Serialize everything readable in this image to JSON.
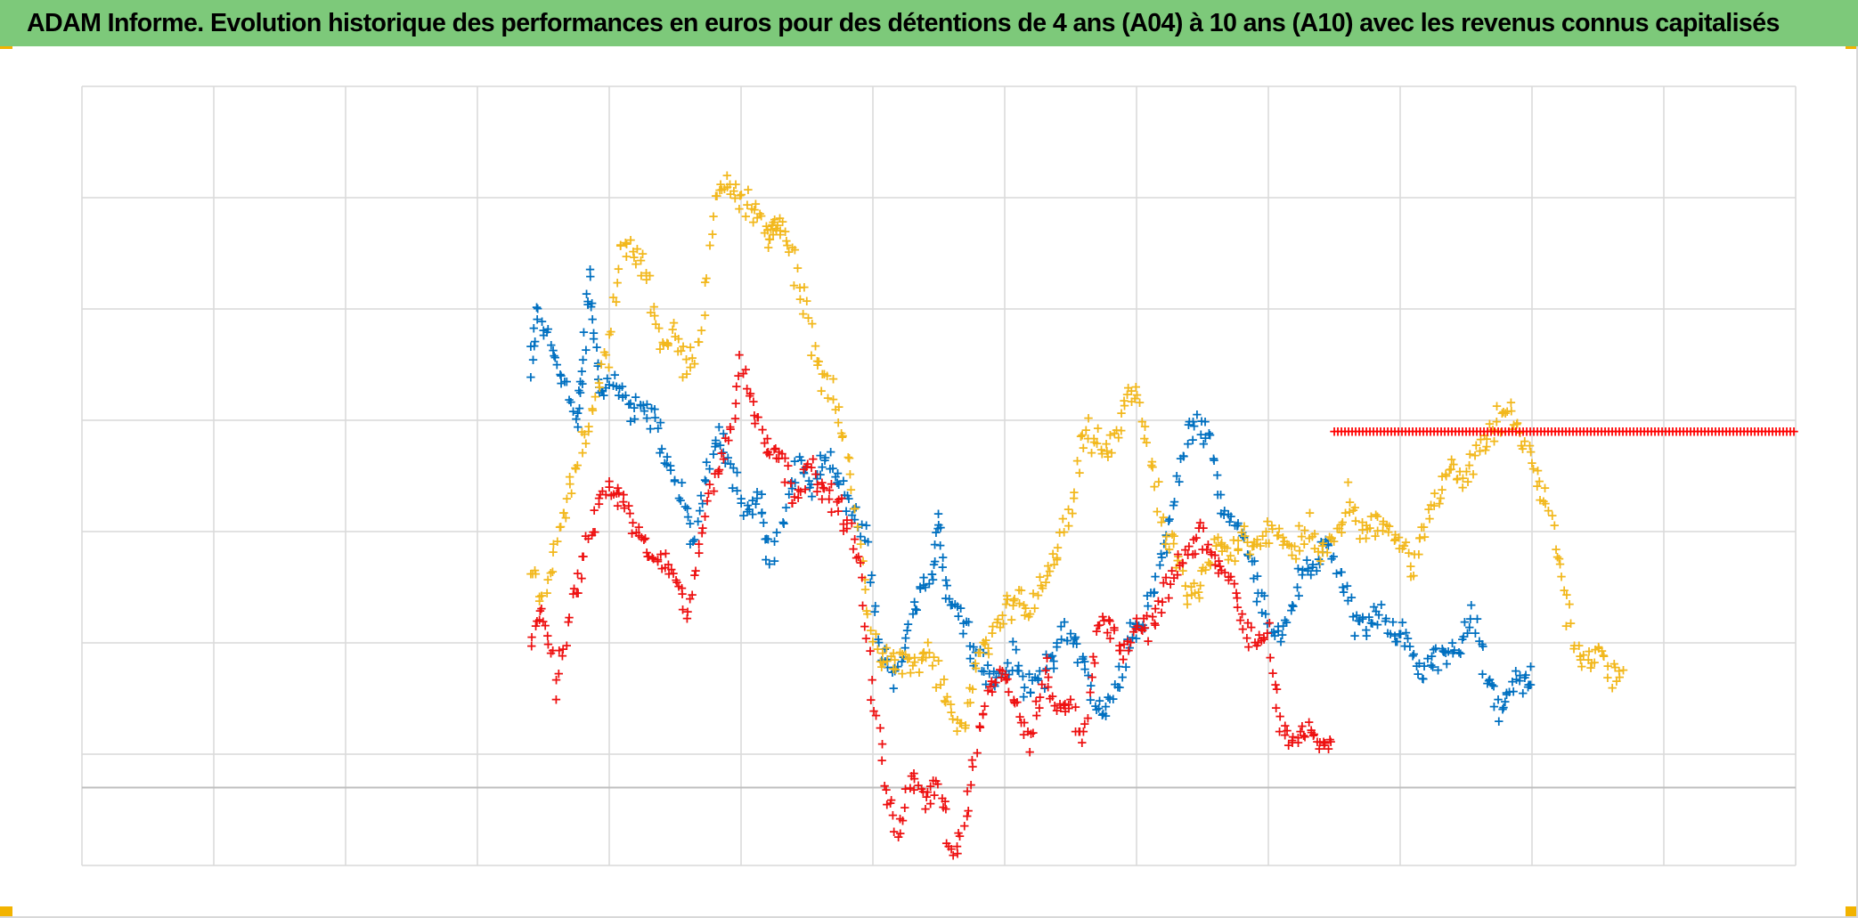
{
  "title": "ADAM Informe. Evolution historique des performances en euros pour des détentions de 4 ans (A04) à 10 ans (A10) avec les revenus connus capitalisés",
  "colors": {
    "title_bar": "#7dc97a",
    "corner_accent": "#f2b300",
    "gridline": "#d9d9d9",
    "zero_line": "#bfbfbf"
  },
  "chart_data": {
    "type": "scatter",
    "title": "ADAM Informe. Evolution historique des performances en euros pour des détentions de 4 ans (A04) à 10 ans (A10) avec les revenus connus capitalisés",
    "xlabel": "",
    "ylabel": "",
    "grid": true,
    "legend": "none",
    "marker": "+",
    "x_unit": "relative time (start of plot = 0, end of plot = 13)",
    "xlim": [
      0,
      13
    ],
    "ylim": [
      -7,
      63
    ],
    "x_gridlines": [
      0,
      1,
      2,
      3,
      4,
      5,
      6,
      7,
      8,
      9,
      10,
      11,
      12,
      13
    ],
    "y_gridlines": [
      -7,
      3,
      13,
      23,
      33,
      43,
      53,
      63
    ],
    "zero_line": 0,
    "series": [
      {
        "color": "#0070c0",
        "density": 7,
        "jitter": 1.6,
        "points": [
          [
            3.4,
            37
          ],
          [
            3.45,
            43
          ],
          [
            3.55,
            40
          ],
          [
            3.65,
            37
          ],
          [
            3.75,
            33
          ],
          [
            3.8,
            37
          ],
          [
            3.85,
            46
          ],
          [
            3.9,
            39
          ],
          [
            3.95,
            35
          ],
          [
            4.05,
            37
          ],
          [
            4.15,
            34
          ],
          [
            4.25,
            34
          ],
          [
            4.35,
            33
          ],
          [
            4.45,
            29
          ],
          [
            4.55,
            26
          ],
          [
            4.65,
            22
          ],
          [
            4.75,
            29
          ],
          [
            4.85,
            32
          ],
          [
            4.95,
            28
          ],
          [
            5.05,
            25
          ],
          [
            5.15,
            26
          ],
          [
            5.2,
            20
          ],
          [
            5.35,
            25
          ],
          [
            5.45,
            30
          ],
          [
            5.55,
            27
          ],
          [
            5.65,
            30
          ],
          [
            5.75,
            27
          ],
          [
            5.85,
            25
          ],
          [
            5.95,
            22
          ],
          [
            6.05,
            12
          ],
          [
            6.15,
            10
          ],
          [
            6.25,
            13
          ],
          [
            6.35,
            18
          ],
          [
            6.45,
            18
          ],
          [
            6.5,
            25
          ],
          [
            6.55,
            18
          ],
          [
            6.65,
            16
          ],
          [
            6.75,
            13
          ],
          [
            6.85,
            11
          ],
          [
            6.95,
            9
          ],
          [
            7.05,
            12
          ],
          [
            7.15,
            9
          ],
          [
            7.25,
            10
          ],
          [
            7.35,
            11
          ],
          [
            7.45,
            14
          ],
          [
            7.55,
            13
          ],
          [
            7.65,
            9
          ],
          [
            7.75,
            6
          ],
          [
            7.85,
            9
          ],
          [
            7.95,
            14
          ],
          [
            8.05,
            15
          ],
          [
            8.15,
            19
          ],
          [
            8.25,
            23
          ],
          [
            8.35,
            30
          ],
          [
            8.45,
            33
          ],
          [
            8.55,
            32
          ],
          [
            8.65,
            25
          ],
          [
            8.75,
            24
          ],
          [
            8.85,
            21
          ],
          [
            8.95,
            17
          ],
          [
            9.05,
            14
          ],
          [
            9.15,
            15
          ],
          [
            9.25,
            19
          ],
          [
            9.35,
            20
          ],
          [
            9.45,
            22
          ],
          [
            9.55,
            19
          ],
          [
            9.65,
            15
          ],
          [
            9.75,
            14
          ],
          [
            9.85,
            16
          ],
          [
            9.95,
            13
          ],
          [
            10.05,
            14
          ],
          [
            10.15,
            10
          ],
          [
            10.25,
            12
          ],
          [
            10.35,
            12
          ],
          [
            10.45,
            13
          ],
          [
            10.55,
            16
          ],
          [
            10.65,
            10
          ],
          [
            10.75,
            7
          ],
          [
            10.85,
            9
          ],
          [
            10.95,
            10
          ],
          [
            11.0,
            10
          ]
        ]
      },
      {
        "color": "#f2b81d",
        "density": 7,
        "jitter": 1.7,
        "points": [
          [
            3.4,
            19
          ],
          [
            3.5,
            17
          ],
          [
            3.6,
            23
          ],
          [
            3.7,
            26
          ],
          [
            3.8,
            31
          ],
          [
            3.9,
            35
          ],
          [
            4.0,
            40
          ],
          [
            4.1,
            49
          ],
          [
            4.2,
            48
          ],
          [
            4.3,
            45
          ],
          [
            4.4,
            40
          ],
          [
            4.5,
            41
          ],
          [
            4.6,
            37
          ],
          [
            4.7,
            41
          ],
          [
            4.8,
            53
          ],
          [
            4.9,
            55
          ],
          [
            5.0,
            53
          ],
          [
            5.1,
            52
          ],
          [
            5.2,
            49
          ],
          [
            5.25,
            51
          ],
          [
            5.3,
            50
          ],
          [
            5.4,
            47
          ],
          [
            5.5,
            43
          ],
          [
            5.6,
            37
          ],
          [
            5.7,
            35
          ],
          [
            5.8,
            30
          ],
          [
            5.9,
            22
          ],
          [
            6.0,
            13
          ],
          [
            6.1,
            12
          ],
          [
            6.2,
            11
          ],
          [
            6.3,
            11
          ],
          [
            6.4,
            12
          ],
          [
            6.5,
            10
          ],
          [
            6.6,
            6
          ],
          [
            6.7,
            6
          ],
          [
            6.8,
            12
          ],
          [
            6.9,
            13
          ],
          [
            7.0,
            16
          ],
          [
            7.1,
            17
          ],
          [
            7.2,
            16
          ],
          [
            7.3,
            19
          ],
          [
            7.4,
            21
          ],
          [
            7.5,
            25
          ],
          [
            7.6,
            32
          ],
          [
            7.7,
            31
          ],
          [
            7.8,
            30
          ],
          [
            7.9,
            34
          ],
          [
            8.0,
            36
          ],
          [
            8.1,
            30
          ],
          [
            8.2,
            23
          ],
          [
            8.3,
            21
          ],
          [
            8.4,
            17
          ],
          [
            8.5,
            18
          ],
          [
            8.6,
            22
          ],
          [
            8.7,
            21
          ],
          [
            8.8,
            23
          ],
          [
            8.9,
            22
          ],
          [
            9.0,
            23
          ],
          [
            9.1,
            22
          ],
          [
            9.2,
            21
          ],
          [
            9.3,
            24
          ],
          [
            9.4,
            21
          ],
          [
            9.5,
            22
          ],
          [
            9.6,
            26
          ],
          [
            9.7,
            23
          ],
          [
            9.8,
            24
          ],
          [
            9.9,
            24
          ],
          [
            10.0,
            22
          ],
          [
            10.1,
            20
          ],
          [
            10.2,
            23
          ],
          [
            10.3,
            27
          ],
          [
            10.4,
            29
          ],
          [
            10.5,
            28
          ],
          [
            10.6,
            30
          ],
          [
            10.7,
            32
          ],
          [
            10.8,
            34
          ],
          [
            10.9,
            32
          ],
          [
            11.0,
            29
          ],
          [
            11.1,
            26
          ],
          [
            11.2,
            21
          ],
          [
            11.3,
            14
          ],
          [
            11.4,
            11
          ],
          [
            11.5,
            12
          ],
          [
            11.6,
            10
          ],
          [
            11.7,
            12
          ]
        ]
      },
      {
        "color": "#ee1111",
        "density": 7,
        "jitter": 1.5,
        "points": [
          [
            3.4,
            13
          ],
          [
            3.5,
            16
          ],
          [
            3.6,
            9
          ],
          [
            3.7,
            16
          ],
          [
            3.8,
            20
          ],
          [
            3.9,
            25
          ],
          [
            4.0,
            27
          ],
          [
            4.1,
            26
          ],
          [
            4.2,
            23
          ],
          [
            4.3,
            21
          ],
          [
            4.4,
            20
          ],
          [
            4.5,
            19
          ],
          [
            4.6,
            16
          ],
          [
            4.7,
            23
          ],
          [
            4.8,
            28
          ],
          [
            4.9,
            31
          ],
          [
            5.0,
            38
          ],
          [
            5.1,
            34
          ],
          [
            5.2,
            31
          ],
          [
            5.3,
            30
          ],
          [
            5.4,
            26
          ],
          [
            5.5,
            29
          ],
          [
            5.6,
            27
          ],
          [
            5.7,
            26
          ],
          [
            5.8,
            24
          ],
          [
            5.9,
            20
          ],
          [
            6.0,
            8
          ],
          [
            6.1,
            0
          ],
          [
            6.2,
            -4
          ],
          [
            6.3,
            1
          ],
          [
            6.4,
            -1
          ],
          [
            6.5,
            1
          ],
          [
            6.6,
            -6
          ],
          [
            6.7,
            -3
          ],
          [
            6.8,
            5
          ],
          [
            6.9,
            9
          ],
          [
            7.0,
            10
          ],
          [
            7.1,
            7
          ],
          [
            7.2,
            4
          ],
          [
            7.3,
            11
          ],
          [
            7.4,
            7
          ],
          [
            7.5,
            8
          ],
          [
            7.6,
            4
          ],
          [
            7.7,
            14
          ],
          [
            7.8,
            15
          ],
          [
            7.9,
            12
          ],
          [
            8.0,
            15
          ],
          [
            8.1,
            14
          ],
          [
            8.2,
            17
          ],
          [
            8.3,
            20
          ],
          [
            8.4,
            21
          ],
          [
            8.5,
            23
          ],
          [
            8.6,
            20
          ],
          [
            8.7,
            19
          ],
          [
            8.8,
            15
          ],
          [
            8.9,
            13
          ],
          [
            9.0,
            14
          ],
          [
            9.1,
            5
          ],
          [
            9.2,
            4
          ],
          [
            9.3,
            6
          ],
          [
            9.4,
            3
          ],
          [
            9.5,
            4
          ]
        ]
      },
      {
        "type": "line",
        "color": "#ff0000",
        "x": [
          9.5,
          13.0
        ],
        "y": [
          32,
          32
        ]
      }
    ]
  }
}
